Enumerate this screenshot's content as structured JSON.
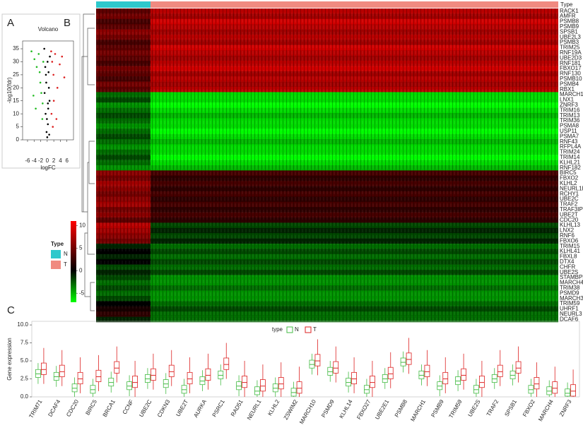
{
  "panels": [
    "A",
    "B",
    "C"
  ],
  "chart_data": [
    {
      "type": "scatter",
      "title": "Volcano",
      "x_label": "logFC",
      "y_label": "-log10(fdr)",
      "xlim": [
        -7.5,
        8
      ],
      "ylim": [
        0,
        38
      ],
      "xticks": [
        -6,
        -4,
        -2,
        0,
        2,
        4,
        6
      ],
      "yticks": [
        0,
        5,
        10,
        15,
        20,
        25,
        30,
        35
      ],
      "series": [
        {
          "color": "#22bb22",
          "x": [
            -4.8,
            -3.9,
            -3.2,
            -2.6,
            -2.1,
            -1.8,
            -1.5,
            -3.5,
            -2.3,
            -1.4,
            -4.2,
            -1.2
          ],
          "values": [
            34,
            31,
            28,
            33,
            22,
            18,
            8,
            12,
            26,
            14,
            17,
            30
          ]
        },
        {
          "color": "#000000",
          "x": [
            -0.9,
            -0.6,
            -0.3,
            0.1,
            0.4,
            0.7,
            -0.5,
            0.2,
            -0.2,
            0.6,
            -0.8,
            0.3,
            0,
            0.5,
            -0.4,
            0.8,
            -0.1,
            0.2
          ],
          "values": [
            35,
            28,
            22,
            30,
            26,
            15,
            10,
            6,
            3,
            2,
            18,
            12,
            1,
            20,
            25,
            32,
            8,
            14
          ]
        },
        {
          "color": "#dd2222",
          "x": [
            1.2,
            1.5,
            1.9,
            2.4,
            3.1,
            3.8,
            4.5,
            2.0,
            1.3,
            2.8,
            5.2,
            1.7
          ],
          "values": [
            34,
            30,
            25,
            33,
            20,
            29,
            32,
            15,
            10,
            8,
            24,
            5
          ]
        }
      ]
    },
    {
      "type": "heatmap",
      "legend_title": "Type",
      "column_header": "Type",
      "groups": [
        "N",
        "T"
      ],
      "group_colors": [
        "#2ec8cc",
        "#f08a80"
      ],
      "zlim": [
        -7,
        11
      ],
      "zticks": [
        -5,
        0,
        5,
        10
      ],
      "low_color": "#00ff00",
      "mid_color": "#000000",
      "high_color": "#ff0000",
      "rows": [
        "RACK1",
        "AMFR",
        "PSMB8",
        "PSMB9",
        "SPSB1",
        "UBE2L3",
        "PSMB3",
        "TRIM25",
        "RNF19A",
        "UBE2D3",
        "RNF181",
        "FBXO17",
        "RNF130",
        "PSMB10",
        "PSMB4",
        "RBX1",
        "MARCH10",
        "LNX1",
        "ZNRF3",
        "TRIM16",
        "TRIM13",
        "TRIM36",
        "PSMA8",
        "USP11",
        "PSMA7",
        "RNF43",
        "RFPL4A",
        "TRIM24",
        "TRIM14",
        "KLHL21",
        "RNF182",
        "BIRC5",
        "FBXO2",
        "KLHL2",
        "NEURL1B",
        "RCHY1",
        "UBE2C",
        "TRAF2",
        "TRAF3IP2",
        "UBE2T",
        "CDC20",
        "KLHL13",
        "LNX2",
        "RNF6",
        "FBXO6",
        "TRIM15",
        "KLHL41",
        "FBXL8",
        "DTX4",
        "CHFR",
        "UBE2S",
        "STAMBPL1",
        "MARCH4",
        "TRIM38",
        "PSMD9",
        "MARCH3",
        "TRIM59",
        "UHRF1",
        "NEURL3",
        "DCAF6"
      ],
      "values": [
        [
          4,
          8
        ],
        [
          5,
          7
        ],
        [
          3,
          9
        ],
        [
          4,
          8
        ],
        [
          6,
          7
        ],
        [
          5,
          8
        ],
        [
          3,
          7
        ],
        [
          4,
          9
        ],
        [
          5,
          8
        ],
        [
          4,
          7
        ],
        [
          3,
          8
        ],
        [
          5,
          9
        ],
        [
          4,
          7
        ],
        [
          3,
          8
        ],
        [
          5,
          7
        ],
        [
          4,
          8
        ],
        [
          -3,
          -6
        ],
        [
          -2,
          -6
        ],
        [
          -4,
          -7
        ],
        [
          -3,
          -6
        ],
        [
          -2,
          -5
        ],
        [
          -3,
          -6
        ],
        [
          -4,
          -6
        ],
        [
          -3,
          -7
        ],
        [
          -2,
          -6
        ],
        [
          -3,
          -5
        ],
        [
          -4,
          -6
        ],
        [
          -3,
          -6
        ],
        [
          -2,
          -7
        ],
        [
          -3,
          -6
        ],
        [
          -4,
          -5
        ],
        [
          6,
          3
        ],
        [
          5,
          2
        ],
        [
          7,
          3
        ],
        [
          6,
          2
        ],
        [
          5,
          3
        ],
        [
          6,
          2
        ],
        [
          7,
          3
        ],
        [
          5,
          2
        ],
        [
          6,
          3
        ],
        [
          4,
          2
        ],
        [
          8,
          -2
        ],
        [
          7,
          -1
        ],
        [
          6,
          -2
        ],
        [
          5,
          -1
        ],
        [
          -1,
          -3
        ],
        [
          0,
          -2
        ],
        [
          -1,
          -3
        ],
        [
          0,
          -2
        ],
        [
          -2,
          -3
        ],
        [
          -1,
          -2
        ],
        [
          -2,
          -4
        ],
        [
          -3,
          -4
        ],
        [
          -2,
          -3
        ],
        [
          -3,
          -4
        ],
        [
          -2,
          -4
        ],
        [
          0,
          -3
        ],
        [
          1,
          -2
        ],
        [
          2,
          -3
        ],
        [
          -1,
          -3
        ]
      ]
    },
    {
      "type": "box",
      "y_label": "Gene expression",
      "legend_title": "type",
      "ylim": [
        0,
        10.5
      ],
      "yticks": [
        {
          "value": 0,
          "label": "0.0"
        },
        {
          "value": 2.5,
          "label": "2.5"
        },
        {
          "value": 5,
          "label": "5.0"
        },
        {
          "value": 7.5,
          "label": "7.5"
        },
        {
          "value": 10,
          "label": "10.0"
        }
      ],
      "categories": [
        "TRIM71",
        "DCAF4",
        "CDC20",
        "BIRC5",
        "BRCA1",
        "CCNF",
        "UBE2C",
        "CDKN3",
        "UBE2T",
        "AURKA",
        "PSRC1",
        "RAD51",
        "NEURL1",
        "KLHL2",
        "ZSWIM2",
        "MARCH10",
        "PSMD9",
        "KLHL14",
        "FBXO27",
        "UBE2E1",
        "PSMB8",
        "MARCH1",
        "PSMB9",
        "TRIM59",
        "UBE2S",
        "TRAF2",
        "SPSB1",
        "FBXO2",
        "MARCH4",
        "ZNRF3"
      ],
      "series": [
        {
          "name": "N",
          "color": "#44bb44",
          "med": [
            3.2,
            2.8,
            1.2,
            1.0,
            2.0,
            1.5,
            2.5,
            1.8,
            1.0,
            2.2,
            3.0,
            1.5,
            0.8,
            1.2,
            0.6,
            4.5,
            3.5,
            2.0,
            1.0,
            2.5,
            4.8,
            3.0,
            1.5,
            2.2,
            1.0,
            2.5,
            3.0,
            1.0,
            0.8,
            0.5
          ],
          "q1": [
            2.7,
            2.3,
            0.7,
            0.5,
            1.5,
            1.0,
            2.0,
            1.3,
            0.5,
            1.7,
            2.5,
            1.0,
            0.3,
            0.7,
            0.1,
            4.0,
            3.0,
            1.5,
            0.5,
            2.0,
            4.3,
            2.5,
            1.0,
            1.7,
            0.5,
            2.0,
            2.5,
            0.5,
            0.3,
            0.1
          ],
          "q3": [
            3.8,
            3.4,
            1.8,
            1.6,
            2.6,
            2.1,
            3.1,
            2.4,
            1.6,
            2.8,
            3.6,
            2.1,
            1.4,
            1.8,
            1.2,
            5.1,
            4.1,
            2.6,
            1.6,
            3.1,
            5.4,
            3.6,
            2.1,
            2.8,
            1.6,
            3.1,
            3.6,
            1.6,
            1.4,
            1.1
          ],
          "lo": [
            1.8,
            1.4,
            0,
            0,
            0.6,
            0.1,
            1.1,
            0.4,
            0,
            0.8,
            1.6,
            0.1,
            0,
            0,
            0,
            3.1,
            2.1,
            0.6,
            0,
            1.1,
            3.4,
            1.6,
            0.1,
            0.8,
            0,
            1.1,
            1.6,
            0,
            0,
            0
          ],
          "hi": [
            4.7,
            4.3,
            2.7,
            2.5,
            3.5,
            3.0,
            4.0,
            3.3,
            2.5,
            3.7,
            4.5,
            3.0,
            2.3,
            2.7,
            2.1,
            6.0,
            5.0,
            3.5,
            2.5,
            4.0,
            6.3,
            4.5,
            3.0,
            3.7,
            2.5,
            4.0,
            4.5,
            2.5,
            2.3,
            2.0
          ]
        },
        {
          "name": "T",
          "color": "#dd2222",
          "med": [
            3.8,
            3.5,
            2.5,
            2.8,
            4.0,
            2.0,
            3.0,
            3.5,
            2.5,
            3.0,
            4.5,
            2.0,
            1.5,
            1.8,
            1.2,
            5.0,
            4.0,
            2.5,
            2.0,
            3.2,
            5.2,
            3.5,
            2.5,
            3.0,
            2.0,
            3.5,
            4.0,
            1.8,
            1.2,
            0.8
          ],
          "q1": [
            3.1,
            2.8,
            1.8,
            2.1,
            3.3,
            1.3,
            2.3,
            2.8,
            1.8,
            2.3,
            3.8,
            1.3,
            0.8,
            1.1,
            0.5,
            4.3,
            3.3,
            1.8,
            1.3,
            2.5,
            4.5,
            2.8,
            1.8,
            2.3,
            1.3,
            2.8,
            3.3,
            1.1,
            0.5,
            0.1
          ],
          "q3": [
            4.7,
            4.4,
            3.4,
            3.7,
            4.9,
            2.9,
            3.9,
            4.4,
            3.4,
            3.9,
            5.4,
            2.9,
            2.4,
            2.7,
            2.1,
            5.9,
            4.9,
            3.4,
            2.9,
            4.1,
            6.1,
            4.4,
            3.4,
            3.9,
            2.9,
            4.4,
            4.9,
            2.7,
            2.1,
            1.7
          ],
          "lo": [
            1.8,
            1.5,
            0.5,
            0.8,
            2.0,
            0,
            1.0,
            1.5,
            0.5,
            1.0,
            2.5,
            0,
            0,
            0,
            0,
            3.0,
            2.0,
            0.5,
            0,
            1.2,
            3.2,
            1.5,
            0.5,
            1.0,
            0,
            1.5,
            2.0,
            0,
            0,
            0
          ],
          "hi": [
            6.8,
            6.5,
            5.5,
            5.8,
            7.0,
            5.0,
            6.0,
            6.5,
            5.5,
            6.0,
            7.5,
            5.0,
            4.5,
            4.8,
            4.2,
            8.0,
            7.0,
            5.5,
            5.0,
            6.2,
            8.2,
            6.5,
            5.5,
            6.0,
            5.0,
            6.5,
            7.0,
            4.8,
            4.2,
            3.8
          ]
        }
      ]
    }
  ]
}
